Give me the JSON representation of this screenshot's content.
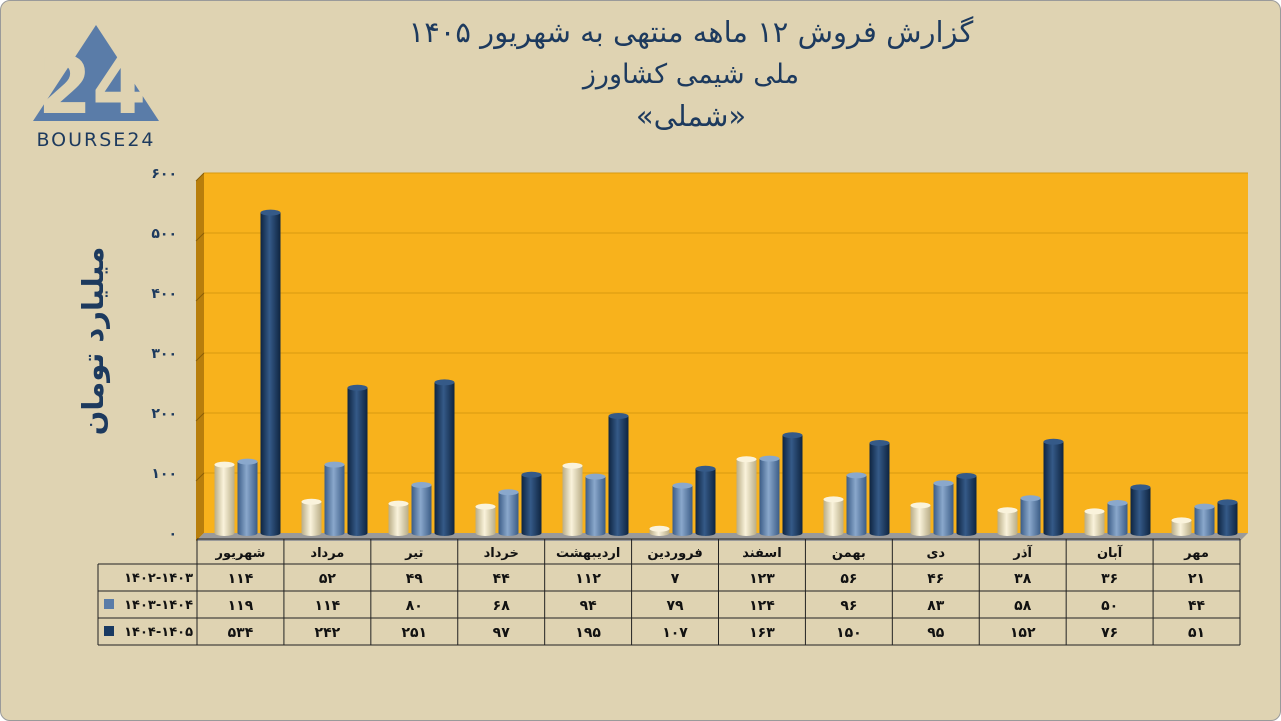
{
  "title": "گزارش  فروش ۱۲ ماهه منتهی به شهریور ۱۴۰۵",
  "subtitle": "ملی شیمی کشاورز",
  "subtitle2": "«شملی»",
  "logo_text": "BOURSE24",
  "colors": {
    "background": "#dfd3b2",
    "plot_area": "#f8b21c",
    "series1": "#ece2c0",
    "series2": "#5a7ca8",
    "series3": "#1a3a62",
    "text": "#1d3a5e"
  },
  "chart_data": {
    "type": "bar",
    "orientation": "rtl",
    "ylabel": "میلیارد تومان",
    "ylim": [
      0,
      600
    ],
    "yticks": [
      0,
      100,
      200,
      300,
      400,
      500,
      600
    ],
    "ytick_labels": [
      "۰",
      "۱۰۰",
      "۲۰۰",
      "۳۰۰",
      "۴۰۰",
      "۵۰۰",
      "۶۰۰"
    ],
    "grid": true,
    "categories": [
      "شهریور",
      "مرداد",
      "تیر",
      "خرداد",
      "اردیبهشت",
      "فروردین",
      "اسفند",
      "بهمن",
      "دی",
      "آذر",
      "آبان",
      "مهر"
    ],
    "series": [
      {
        "name": "۱۴۰۲-۱۴۰۳",
        "values": [
          114,
          52,
          49,
          44,
          112,
          7,
          123,
          56,
          46,
          38,
          36,
          21
        ],
        "labels": [
          "۱۱۴",
          "۵۲",
          "۴۹",
          "۴۴",
          "۱۱۲",
          "۷",
          "۱۲۳",
          "۵۶",
          "۴۶",
          "۳۸",
          "۳۶",
          "۲۱"
        ]
      },
      {
        "name": "۱۴۰۳-۱۴۰۴",
        "values": [
          119,
          114,
          80,
          68,
          94,
          79,
          124,
          96,
          83,
          58,
          50,
          44
        ],
        "labels": [
          "۱۱۹",
          "۱۱۴",
          "۸۰",
          "۶۸",
          "۹۴",
          "۷۹",
          "۱۲۴",
          "۹۶",
          "۸۳",
          "۵۸",
          "۵۰",
          "۴۴"
        ]
      },
      {
        "name": "۱۴۰۴-۱۴۰۵",
        "values": [
          534,
          242,
          251,
          97,
          195,
          107,
          163,
          150,
          95,
          152,
          76,
          51
        ],
        "labels": [
          "۵۳۴",
          "۲۴۲",
          "۲۵۱",
          "۹۷",
          "۱۹۵",
          "۱۰۷",
          "۱۶۳",
          "۱۵۰",
          "۹۵",
          "۱۵۲",
          "۷۶",
          "۵۱"
        ]
      }
    ]
  }
}
